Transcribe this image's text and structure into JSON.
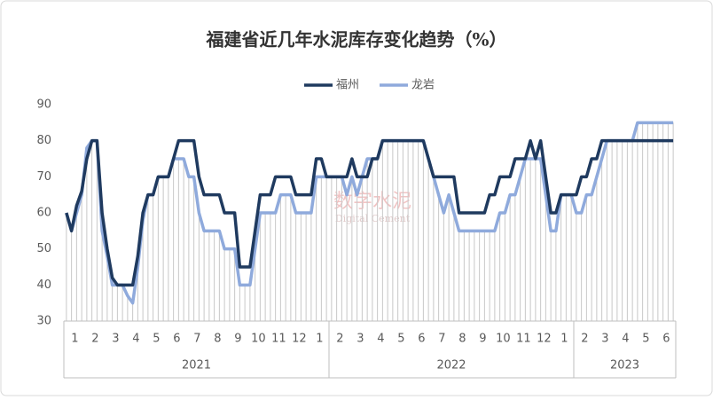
{
  "chart_data": {
    "type": "line",
    "title": "福建省近几年水泥库存变化趋势（%）",
    "watermark": "数字水泥",
    "watermark_sub": "Digital Cement",
    "categories": [
      null,
      null,
      "1",
      null,
      null,
      null,
      "2",
      null,
      null,
      null,
      "3",
      null,
      null,
      null,
      "4",
      null,
      null,
      null,
      "5",
      null,
      null,
      null,
      "6",
      null,
      null,
      null,
      "7",
      null,
      null,
      null,
      "8",
      null,
      null,
      null,
      "9",
      null,
      null,
      null,
      "10",
      null,
      null,
      null,
      "11",
      null,
      null,
      null,
      "12",
      null,
      null,
      null,
      "1",
      null,
      null,
      null,
      "2",
      null,
      null,
      null,
      "3",
      null,
      null,
      null,
      "4",
      null,
      null,
      null,
      "5",
      null,
      null,
      null,
      "6",
      null,
      null,
      null,
      "7",
      null,
      null,
      null,
      "8",
      null,
      null,
      null,
      "9",
      null,
      null,
      null,
      "10",
      null,
      null,
      null,
      "11",
      null,
      null,
      null,
      "12",
      null,
      null,
      null,
      "1",
      null,
      null,
      null,
      "2",
      null,
      null,
      null,
      "3",
      null,
      null,
      null,
      "4",
      null,
      null,
      null,
      "5",
      null,
      null,
      null,
      "6",
      null
    ],
    "groups": [
      {
        "name": "2021",
        "size": 52
      },
      {
        "name": "2022",
        "size": 48
      },
      {
        "name": "2023",
        "size": 20
      }
    ],
    "series": [
      {
        "name": "福州",
        "color": "#1f3a5f",
        "values": [
          60,
          55,
          62,
          66,
          75,
          80,
          80,
          60,
          50,
          42,
          40,
          40,
          40,
          40,
          48,
          60,
          65,
          65,
          70,
          70,
          70,
          75,
          80,
          80,
          80,
          80,
          70,
          65,
          65,
          65,
          65,
          60,
          60,
          60,
          45,
          45,
          45,
          55,
          65,
          65,
          65,
          70,
          70,
          70,
          70,
          65,
          65,
          65,
          65,
          75,
          75,
          70,
          70,
          70,
          70,
          70,
          75,
          70,
          70,
          70,
          75,
          75,
          80,
          80,
          80,
          80,
          80,
          80,
          80,
          80,
          80,
          75,
          70,
          70,
          70,
          70,
          70,
          60,
          60,
          60,
          60,
          60,
          60,
          65,
          65,
          70,
          70,
          70,
          75,
          75,
          75,
          80,
          75,
          80,
          70,
          60,
          60,
          65,
          65,
          65,
          65,
          70,
          70,
          75,
          75,
          80,
          80,
          80,
          80,
          80,
          80,
          80,
          80,
          80,
          80,
          80,
          80,
          80,
          80,
          80
        ]
      },
      {
        "name": "龙岩",
        "color": "#8faadc",
        "values": [
          60,
          55,
          60,
          65,
          78,
          80,
          80,
          55,
          48,
          40,
          40,
          40,
          37,
          35,
          45,
          58,
          65,
          65,
          70,
          70,
          70,
          75,
          75,
          75,
          70,
          70,
          60,
          55,
          55,
          55,
          55,
          50,
          50,
          50,
          40,
          40,
          40,
          50,
          60,
          60,
          60,
          60,
          65,
          65,
          65,
          60,
          60,
          60,
          60,
          70,
          70,
          70,
          70,
          70,
          70,
          65,
          70,
          65,
          70,
          75,
          75,
          75,
          80,
          80,
          80,
          80,
          80,
          80,
          80,
          80,
          80,
          75,
          70,
          65,
          60,
          65,
          60,
          55,
          55,
          55,
          55,
          55,
          55,
          55,
          55,
          60,
          60,
          65,
          65,
          70,
          75,
          75,
          75,
          75,
          65,
          55,
          55,
          65,
          65,
          65,
          60,
          60,
          65,
          65,
          70,
          75,
          80,
          80,
          80,
          80,
          80,
          80,
          85,
          85,
          85,
          85,
          85,
          85,
          85,
          85
        ]
      }
    ],
    "ylim": [
      30,
      90
    ],
    "yticks": [
      30,
      40,
      50,
      60,
      70,
      80,
      90
    ],
    "legend": "top"
  }
}
